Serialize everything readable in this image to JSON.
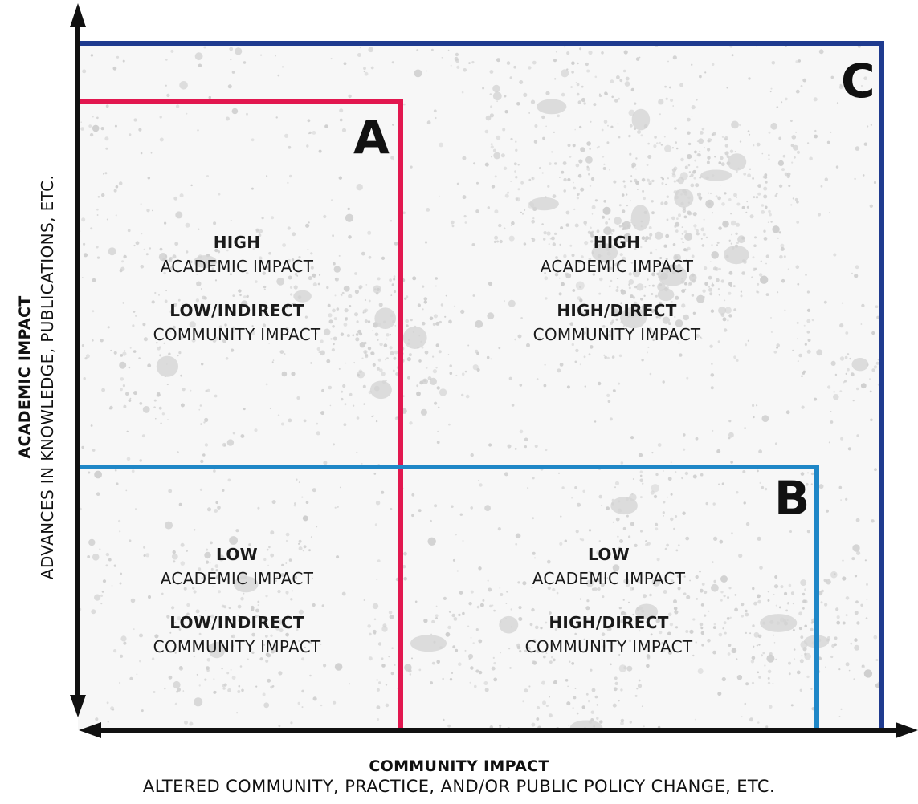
{
  "regions": {
    "a": {
      "letter": "A",
      "color": "#e2174f"
    },
    "b": {
      "letter": "B",
      "color": "#1f87c7"
    },
    "c": {
      "letter": "C",
      "color": "#1f3b8f"
    }
  },
  "quadrants": {
    "top_left": {
      "level1": "HIGH",
      "label1": "ACADEMIC IMPACT",
      "level2": "LOW/INDIRECT",
      "label2": "COMMUNITY IMPACT"
    },
    "top_right": {
      "level1": "HIGH",
      "label1": "ACADEMIC IMPACT",
      "level2": "HIGH/DIRECT",
      "label2": "COMMUNITY IMPACT"
    },
    "bottom_left": {
      "level1": "LOW",
      "label1": "ACADEMIC IMPACT",
      "level2": "LOW/INDIRECT",
      "label2": "COMMUNITY IMPACT"
    },
    "bottom_right": {
      "level1": "LOW",
      "label1": "ACADEMIC IMPACT",
      "level2": "HIGH/DIRECT",
      "label2": "COMMUNITY IMPACT"
    }
  },
  "axes": {
    "x_title": "COMMUNITY IMPACT",
    "x_subtitle": "ALTERED COMMUNITY, PRACTICE, AND/OR PUBLIC POLICY CHANGE, ETC.",
    "y_title": "ACADEMIC IMPACT",
    "y_subtitle": "ADVANCES IN KNOWLEDGE, PUBLICATIONS, ETC."
  }
}
